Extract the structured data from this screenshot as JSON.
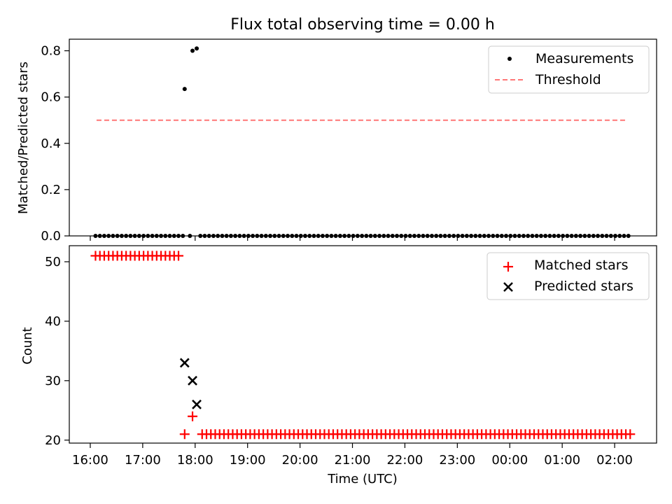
{
  "chart_data": [
    {
      "type": "scatter",
      "title": "Flux total observing time = 0.00 h",
      "xlabel": "",
      "ylabel": "Matched/Predicted stars",
      "xlim": [
        15.6,
        26.8
      ],
      "ylim": [
        0.0,
        0.85
      ],
      "yticks": [
        0.0,
        0.2,
        0.4,
        0.6,
        0.8
      ],
      "ytick_labels": [
        "0.0",
        "0.2",
        "0.4",
        "0.6",
        "0.8"
      ],
      "series": [
        {
          "name": "Measurements",
          "marker": "dot",
          "color": "#000000",
          "x_start": 16.1,
          "x_end": 26.3,
          "step": 0.0833,
          "y_default": 0.0,
          "overrides": [
            {
              "x": 17.8,
              "y": 0.635
            },
            {
              "x": 17.95,
              "y": 0.8
            },
            {
              "x": 18.03,
              "y": 0.81
            }
          ],
          "gaps": [
            [
              17.82,
              18.08
            ]
          ],
          "extra_points": [
            {
              "x": 17.9,
              "y": 0.0
            }
          ]
        },
        {
          "name": "Threshold",
          "marker": "dashed-line",
          "color": "#ff7777",
          "x": [
            16.12,
            26.23
          ],
          "y": [
            0.5,
            0.5
          ]
        }
      ],
      "legend": [
        "Measurements",
        "Threshold"
      ],
      "legend_position": "top-right"
    },
    {
      "type": "scatter",
      "title": "",
      "xlabel": "Time (UTC)",
      "ylabel": "Count",
      "xlim": [
        15.6,
        26.8
      ],
      "ylim": [
        19.5,
        52.7
      ],
      "yticks": [
        20,
        30,
        40,
        50
      ],
      "ytick_labels": [
        "20",
        "30",
        "40",
        "50"
      ],
      "xticks": [
        16,
        17,
        18,
        19,
        20,
        21,
        22,
        23,
        24,
        25,
        26
      ],
      "xtick_labels": [
        "16:00",
        "17:00",
        "18:00",
        "19:00",
        "20:00",
        "21:00",
        "22:00",
        "23:00",
        "00:00",
        "01:00",
        "02:00"
      ],
      "series": [
        {
          "name": "Matched stars",
          "marker": "plus",
          "color": "#ff0000",
          "segments": [
            {
              "x_start": 16.1,
              "x_end": 17.73,
              "step": 0.0833,
              "y": 51
            },
            {
              "x_start": 17.8,
              "x_end": 26.3,
              "step": 0.0833,
              "y": 21,
              "skip": [
                [
                  17.86,
                  18.05
                ]
              ]
            }
          ],
          "points": [
            {
              "x": 17.95,
              "y": 24
            }
          ]
        },
        {
          "name": "Predicted stars",
          "marker": "x",
          "color": "#000000",
          "points": [
            {
              "x": 17.8,
              "y": 33
            },
            {
              "x": 17.95,
              "y": 30
            },
            {
              "x": 18.03,
              "y": 26
            }
          ]
        }
      ],
      "legend": [
        "Matched stars",
        "Predicted stars"
      ],
      "legend_position": "top-right"
    }
  ]
}
